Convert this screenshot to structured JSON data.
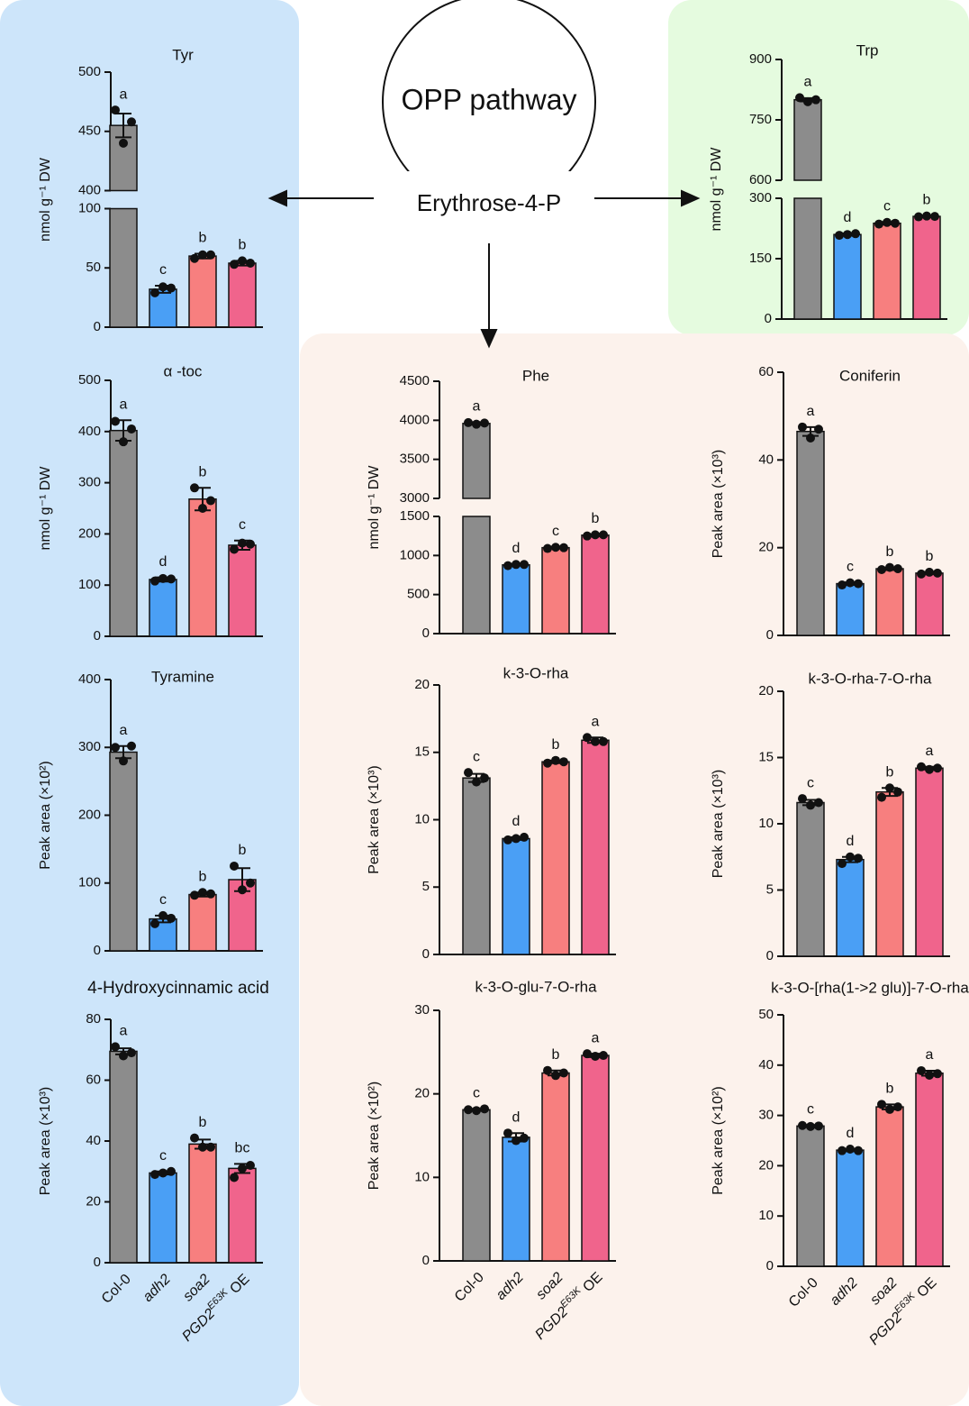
{
  "diagram": {
    "circle_label": "OPP pathway",
    "node": "Erythrose-4-P"
  },
  "chart_data": [
    {
      "type": "bar",
      "title": "Tyr",
      "ylabel": "nmol g⁻¹ DW",
      "y_segments": [
        {
          "ylim": [
            0,
            100
          ],
          "yticks": [
            0,
            50,
            100
          ]
        },
        {
          "ylim": [
            400,
            500
          ],
          "yticks": [
            400,
            450,
            500
          ]
        }
      ],
      "values": [
        455,
        32,
        60,
        54
      ],
      "errors": [
        10,
        3,
        2,
        2
      ],
      "letters": [
        "a",
        "c",
        "b",
        "b"
      ],
      "points": [
        [
          468,
          440,
          458
        ],
        [
          29,
          34,
          33
        ],
        [
          58,
          61,
          61
        ],
        [
          53,
          56,
          54
        ]
      ],
      "colors": [
        "#8c8c8c",
        "#4a9ff5",
        "#f77f7f",
        "#f0648c"
      ]
    },
    {
      "type": "bar",
      "title": "α -toc",
      "ylabel": "nmol g⁻¹ DW",
      "ylim": [
        0,
        500
      ],
      "yticks": [
        0,
        100,
        200,
        300,
        400,
        500
      ],
      "values": [
        402,
        111,
        268,
        178
      ],
      "errors": [
        20,
        4,
        22,
        9
      ],
      "letters": [
        "a",
        "d",
        "b",
        "c"
      ],
      "points": [
        [
          420,
          380,
          405
        ],
        [
          108,
          113,
          112
        ],
        [
          290,
          250,
          265
        ],
        [
          170,
          182,
          180
        ]
      ],
      "colors": [
        "#8c8c8c",
        "#4a9ff5",
        "#f77f7f",
        "#f0648c"
      ]
    },
    {
      "type": "bar",
      "title": "Tyramine",
      "ylabel": "Peak area (×10²)",
      "ylim": [
        0,
        400
      ],
      "yticks": [
        0,
        100,
        200,
        300,
        400
      ],
      "values": [
        293,
        47,
        83,
        105
      ],
      "errors": [
        9,
        5,
        3,
        17
      ],
      "letters": [
        "a",
        "c",
        "b",
        "b"
      ],
      "points": [
        [
          300,
          280,
          302
        ],
        [
          40,
          52,
          48
        ],
        [
          82,
          86,
          84
        ],
        [
          125,
          90,
          100
        ]
      ],
      "colors": [
        "#8c8c8c",
        "#4a9ff5",
        "#f77f7f",
        "#f0648c"
      ]
    },
    {
      "type": "bar",
      "title": "4-Hydroxycinnamic acid",
      "ylabel": "Peak area (×10³)",
      "ylim": [
        0,
        80
      ],
      "yticks": [
        0,
        20,
        40,
        60,
        80
      ],
      "values": [
        69.5,
        29.5,
        39,
        31
      ],
      "errors": [
        1,
        0.5,
        1.5,
        1.5
      ],
      "letters": [
        "a",
        "c",
        "b",
        "bc"
      ],
      "points": [
        [
          71,
          68,
          69
        ],
        [
          29,
          29.5,
          30
        ],
        [
          41,
          38,
          38
        ],
        [
          28,
          31,
          32
        ]
      ],
      "colors": [
        "#8c8c8c",
        "#4a9ff5",
        "#f77f7f",
        "#f0648c"
      ],
      "categories": [
        "Col-0",
        "adh2",
        "soa2",
        {
          "base": "PGD2",
          "sup": "E63K",
          "rest": " OE"
        }
      ]
    },
    {
      "type": "bar",
      "title": "Trp",
      "ylabel": "nmol g⁻¹ DW",
      "y_segments": [
        {
          "ylim": [
            0,
            300
          ],
          "yticks": [
            0,
            150,
            300
          ]
        },
        {
          "ylim": [
            600,
            900
          ],
          "yticks": [
            600,
            750,
            900
          ]
        }
      ],
      "values": [
        800,
        210,
        238,
        255
      ],
      "errors": [
        4,
        3,
        3,
        2
      ],
      "letters": [
        "a",
        "d",
        "c",
        "b"
      ],
      "points": [
        [
          805,
          795,
          800
        ],
        [
          208,
          210,
          212
        ],
        [
          236,
          240,
          238
        ],
        [
          254,
          256,
          255
        ]
      ],
      "colors": [
        "#8c8c8c",
        "#4a9ff5",
        "#f77f7f",
        "#f0648c"
      ]
    },
    {
      "type": "bar",
      "title": "Phe",
      "ylabel": "nmol g⁻¹ DW",
      "y_segments": [
        {
          "ylim": [
            0,
            1500
          ],
          "yticks": [
            0,
            500,
            1000,
            1500
          ]
        },
        {
          "ylim": [
            3000,
            4500
          ],
          "yticks": [
            3000,
            3500,
            4000,
            4500
          ]
        }
      ],
      "values": [
        3960,
        880,
        1100,
        1260
      ],
      "errors": [
        15,
        10,
        10,
        10
      ],
      "letters": [
        "a",
        "d",
        "c",
        "b"
      ],
      "points": [
        [
          3970,
          3950,
          3965
        ],
        [
          870,
          885,
          885
        ],
        [
          1090,
          1105,
          1100
        ],
        [
          1250,
          1265,
          1265
        ]
      ],
      "colors": [
        "#8c8c8c",
        "#4a9ff5",
        "#f77f7f",
        "#f0648c"
      ]
    },
    {
      "type": "bar",
      "title": "Coniferin",
      "ylabel": "Peak area (×10³)",
      "ylim": [
        0,
        60
      ],
      "yticks": [
        0,
        20,
        40,
        60
      ],
      "values": [
        46.5,
        11.8,
        15.2,
        14.2
      ],
      "errors": [
        1,
        0.3,
        0.3,
        0.2
      ],
      "letters": [
        "a",
        "c",
        "b",
        "b"
      ],
      "points": [
        [
          47.5,
          45,
          47
        ],
        [
          11.5,
          12,
          11.8
        ],
        [
          15,
          15.5,
          15.2
        ],
        [
          14,
          14.4,
          14.2
        ]
      ],
      "colors": [
        "#8c8c8c",
        "#4a9ff5",
        "#f77f7f",
        "#f0648c"
      ]
    },
    {
      "type": "bar",
      "title": "k-3-O-rha",
      "ylabel": "Peak area (×10³)",
      "ylim": [
        0,
        20
      ],
      "yticks": [
        0,
        5,
        10,
        15,
        20
      ],
      "values": [
        13.1,
        8.6,
        14.3,
        15.9
      ],
      "errors": [
        0.3,
        0.1,
        0.1,
        0.2
      ],
      "letters": [
        "c",
        "d",
        "b",
        "a"
      ],
      "points": [
        [
          13.5,
          12.8,
          13.1
        ],
        [
          8.5,
          8.6,
          8.7
        ],
        [
          14.2,
          14.4,
          14.3
        ],
        [
          16.1,
          15.8,
          15.8
        ]
      ],
      "colors": [
        "#8c8c8c",
        "#4a9ff5",
        "#f77f7f",
        "#f0648c"
      ]
    },
    {
      "type": "bar",
      "title": "k-3-O-rha-7-O-rha",
      "ylabel": "Peak area (×10³)",
      "ylim": [
        0,
        20
      ],
      "yticks": [
        0,
        5,
        10,
        15,
        20
      ],
      "values": [
        11.6,
        7.3,
        12.4,
        14.2
      ],
      "errors": [
        0.2,
        0.2,
        0.3,
        0.1
      ],
      "letters": [
        "c",
        "d",
        "b",
        "a"
      ],
      "points": [
        [
          11.9,
          11.4,
          11.6
        ],
        [
          7.0,
          7.5,
          7.4
        ],
        [
          12.0,
          12.7,
          12.4
        ],
        [
          14.3,
          14.1,
          14.2
        ]
      ],
      "colors": [
        "#8c8c8c",
        "#4a9ff5",
        "#f77f7f",
        "#f0648c"
      ]
    },
    {
      "type": "bar",
      "title": "k-3-O-glu-7-O-rha",
      "ylabel": "Peak area (×10²)",
      "ylim": [
        0,
        30
      ],
      "yticks": [
        0,
        10,
        20,
        30
      ],
      "values": [
        18.1,
        14.8,
        22.5,
        24.6
      ],
      "errors": [
        0.1,
        0.5,
        0.3,
        0.2
      ],
      "letters": [
        "c",
        "d",
        "b",
        "a"
      ],
      "points": [
        [
          18.1,
          18.0,
          18.2
        ],
        [
          15.3,
          14.4,
          14.7
        ],
        [
          22.8,
          22.2,
          22.5
        ],
        [
          24.8,
          24.5,
          24.6
        ]
      ],
      "colors": [
        "#8c8c8c",
        "#4a9ff5",
        "#f77f7f",
        "#f0648c"
      ],
      "categories": [
        "Col-0",
        "adh2",
        "soa2",
        {
          "base": "PGD2",
          "sup": "E63K",
          "rest": " OE"
        }
      ]
    },
    {
      "type": "bar",
      "title": "k-3-O-[rha(1->2 glu)]-7-O-rha",
      "ylabel": "Peak area (×10²)",
      "ylim": [
        0,
        50
      ],
      "yticks": [
        0,
        10,
        20,
        30,
        40,
        50
      ],
      "values": [
        27.9,
        23.1,
        31.7,
        38.4
      ],
      "errors": [
        0.2,
        0.2,
        0.5,
        0.5
      ],
      "letters": [
        "c",
        "d",
        "b",
        "a"
      ],
      "points": [
        [
          28.0,
          27.8,
          27.9
        ],
        [
          23.0,
          23.3,
          23.0
        ],
        [
          32.2,
          31.2,
          31.7
        ],
        [
          38.9,
          38.0,
          38.3
        ]
      ],
      "colors": [
        "#8c8c8c",
        "#4a9ff5",
        "#f77f7f",
        "#f0648c"
      ],
      "categories": [
        "Col-0",
        "adh2",
        "soa2",
        {
          "base": "PGD2",
          "sup": "E63K",
          "rest": " OE"
        }
      ]
    }
  ]
}
